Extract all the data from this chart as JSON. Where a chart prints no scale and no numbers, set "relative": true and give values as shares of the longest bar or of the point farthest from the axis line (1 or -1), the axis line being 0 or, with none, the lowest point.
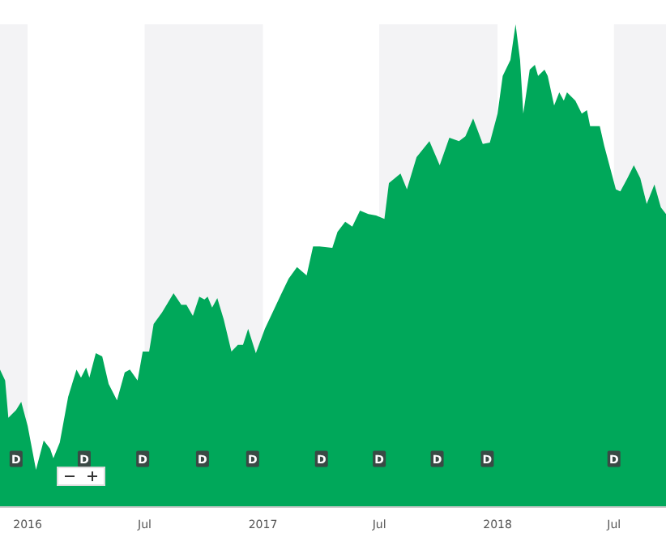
{
  "chart_data": {
    "type": "area",
    "relative": true,
    "x": [
      "2015-11-19",
      "2015-11-27",
      "2015-12-02",
      "2015-12-14",
      "2015-12-22",
      "2016-01-01",
      "2016-01-14",
      "2016-01-26",
      "2016-02-05",
      "2016-02-10",
      "2016-02-20",
      "2016-03-04",
      "2016-03-17",
      "2016-03-24",
      "2016-04-01",
      "2016-04-06",
      "2016-04-16",
      "2016-04-26",
      "2016-05-06",
      "2016-05-19",
      "2016-05-31",
      "2016-06-08",
      "2016-06-20",
      "2016-06-28",
      "2016-07-08",
      "2016-07-15",
      "2016-07-28",
      "2016-08-15",
      "2016-08-27",
      "2016-09-04",
      "2016-09-14",
      "2016-09-24",
      "2016-10-02",
      "2016-10-07",
      "2016-10-14",
      "2016-10-22",
      "2016-11-01",
      "2016-11-13",
      "2016-11-23",
      "2016-12-01",
      "2016-12-09",
      "2016-12-21",
      "2017-01-04",
      "2017-01-16",
      "2017-01-29",
      "2017-02-10",
      "2017-02-23",
      "2017-03-10",
      "2017-03-20",
      "2017-03-30",
      "2017-04-19",
      "2017-04-27",
      "2017-05-09",
      "2017-05-20",
      "2017-06-01",
      "2017-06-14",
      "2017-06-26",
      "2017-07-09",
      "2017-07-16",
      "2017-08-03",
      "2017-08-13",
      "2017-08-28",
      "2017-09-17",
      "2017-10-03",
      "2017-10-18",
      "2017-11-02",
      "2017-11-12",
      "2017-11-24",
      "2017-12-09",
      "2017-12-20",
      "2018-01-01",
      "2018-01-09",
      "2018-01-21",
      "2018-01-29",
      "2018-02-05",
      "2018-02-10",
      "2018-02-20",
      "2018-02-28",
      "2018-03-05",
      "2018-03-15",
      "2018-03-20",
      "2018-03-30",
      "2018-04-07",
      "2018-04-14",
      "2018-04-19",
      "2018-05-02",
      "2018-05-12",
      "2018-05-20",
      "2018-05-25",
      "2018-06-09",
      "2018-06-16",
      "2018-07-04",
      "2018-07-11",
      "2018-07-22",
      "2018-08-01",
      "2018-08-11",
      "2018-08-21",
      "2018-09-02",
      "2018-09-12",
      "2018-09-20"
    ],
    "series": [
      {
        "color": "#00a85a",
        "values": [
          0.285,
          0.262,
          0.185,
          0.201,
          0.218,
          0.168,
          0.077,
          0.138,
          0.121,
          0.101,
          0.134,
          0.228,
          0.285,
          0.268,
          0.289,
          0.268,
          0.319,
          0.312,
          0.255,
          0.221,
          0.279,
          0.285,
          0.262,
          0.322,
          0.322,
          0.379,
          0.403,
          0.443,
          0.419,
          0.419,
          0.396,
          0.436,
          0.43,
          0.436,
          0.413,
          0.433,
          0.389,
          0.322,
          0.336,
          0.336,
          0.369,
          0.319,
          0.369,
          0.403,
          0.44,
          0.473,
          0.497,
          0.48,
          0.54,
          0.54,
          0.537,
          0.57,
          0.591,
          0.581,
          0.614,
          0.607,
          0.604,
          0.597,
          0.671,
          0.691,
          0.658,
          0.725,
          0.758,
          0.708,
          0.765,
          0.758,
          0.768,
          0.805,
          0.752,
          0.755,
          0.815,
          0.893,
          0.926,
          1,
          0.926,
          0.815,
          0.906,
          0.916,
          0.893,
          0.906,
          0.893,
          0.832,
          0.859,
          0.842,
          0.859,
          0.842,
          0.815,
          0.822,
          0.789,
          0.789,
          0.748,
          0.658,
          0.654,
          0.681,
          0.708,
          0.681,
          0.628,
          0.668,
          0.621,
          0.607
        ]
      }
    ],
    "xlim": [
      "2015-11-19",
      "2018-09-20"
    ],
    "xticks": [
      {
        "value": "2016-01-01",
        "label": "2016"
      },
      {
        "value": "2016-07-01",
        "label": "Jul"
      },
      {
        "value": "2017-01-01",
        "label": "2017"
      },
      {
        "value": "2017-07-01",
        "label": "Jul"
      },
      {
        "value": "2018-01-01",
        "label": "2018"
      },
      {
        "value": "2018-07-01",
        "label": "Jul"
      }
    ],
    "bands": [
      {
        "axis": "x",
        "from": "2015-11-19",
        "to": "2016-01-01",
        "color": "#f3f3f5"
      },
      {
        "axis": "x",
        "from": "2016-07-01",
        "to": "2017-01-01",
        "color": "#f3f3f5"
      },
      {
        "axis": "x",
        "from": "2017-07-01",
        "to": "2018-01-01",
        "color": "#f3f3f5"
      },
      {
        "axis": "x",
        "from": "2018-07-01",
        "to": "2018-09-20",
        "color": "#f3f3f5"
      }
    ],
    "annotations": [
      {
        "text": "D",
        "x": "2015-12-14"
      },
      {
        "text": "D",
        "x": "2016-03-29"
      },
      {
        "text": "D",
        "x": "2016-06-28"
      },
      {
        "text": "D",
        "x": "2016-09-29"
      },
      {
        "text": "D",
        "x": "2016-12-16"
      },
      {
        "text": "D",
        "x": "2017-04-02"
      },
      {
        "text": "D",
        "x": "2017-07-01"
      },
      {
        "text": "D",
        "x": "2017-09-29"
      },
      {
        "text": "D",
        "x": "2017-12-16"
      },
      {
        "text": "D",
        "x": "2018-07-01"
      }
    ]
  }
}
